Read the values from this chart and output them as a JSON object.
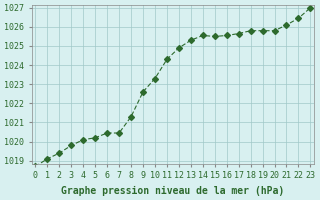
{
  "x": [
    0,
    1,
    2,
    3,
    4,
    5,
    6,
    7,
    8,
    9,
    10,
    11,
    12,
    13,
    14,
    15,
    16,
    17,
    18,
    19,
    20,
    21,
    22,
    23
  ],
  "y": [
    1018.7,
    1019.1,
    1019.4,
    1019.8,
    1020.1,
    1020.2,
    1020.45,
    1020.45,
    1021.3,
    1022.6,
    1023.3,
    1024.3,
    1024.9,
    1025.3,
    1025.55,
    1025.5,
    1025.55,
    1025.65,
    1025.8,
    1025.8,
    1025.8,
    1026.1,
    1026.45,
    1027.0
  ],
  "ylim": [
    1019,
    1027
  ],
  "xlim": [
    0,
    23
  ],
  "yticks": [
    1019,
    1020,
    1021,
    1022,
    1023,
    1024,
    1025,
    1026,
    1027
  ],
  "xticks": [
    0,
    1,
    2,
    3,
    4,
    5,
    6,
    7,
    8,
    9,
    10,
    11,
    12,
    13,
    14,
    15,
    16,
    17,
    18,
    19,
    20,
    21,
    22,
    23
  ],
  "xlabel": "Graphe pression niveau de la mer (hPa)",
  "line_color": "#2d6a2d",
  "marker": "D",
  "marker_size": 3,
  "bg_color": "#d8f0f0",
  "grid_color": "#a0c8c8",
  "tick_label_color": "#2d6a2d",
  "xlabel_color": "#2d6a2d",
  "tick_fontsize": 6,
  "xlabel_fontsize": 7
}
